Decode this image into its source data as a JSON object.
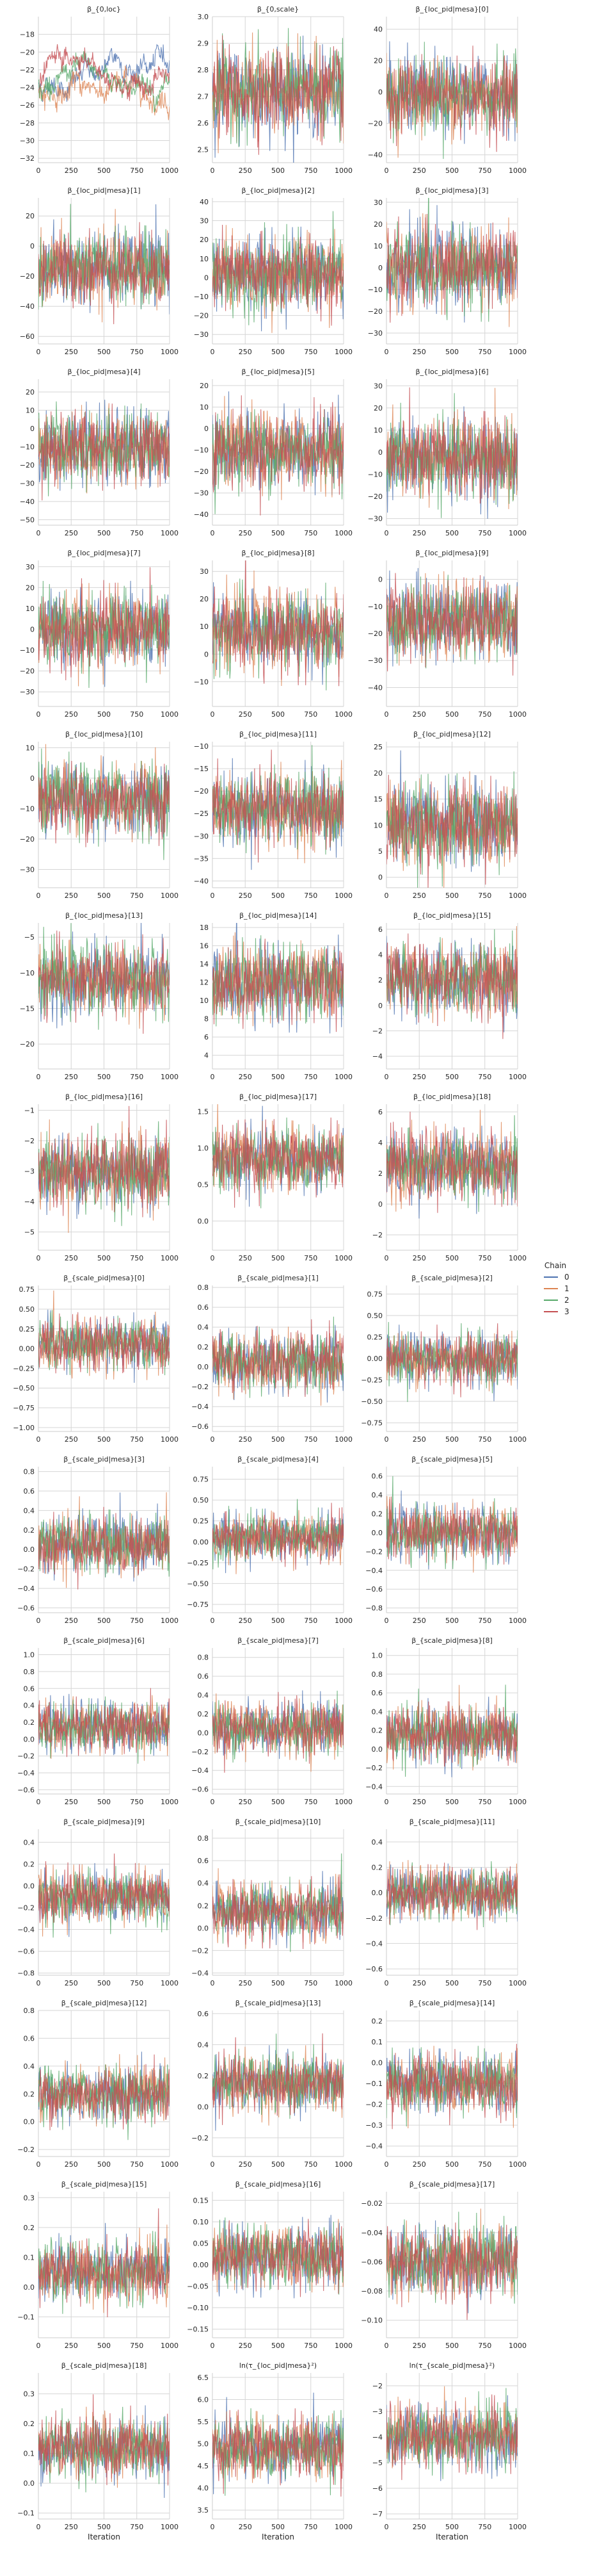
{
  "chart_data": {
    "type": "line",
    "layout": {
      "rows": 14,
      "cols": 3
    },
    "xlabel": "Iteration",
    "xlim": [
      0,
      1000
    ],
    "xticks": [
      0,
      250,
      500,
      750,
      1000
    ],
    "legend": {
      "title": "Chain",
      "placement": "right",
      "entries": [
        "0",
        "1",
        "2",
        "3"
      ]
    },
    "series_colors": [
      "#4c72b0",
      "#dd8452",
      "#55a868",
      "#c44e52"
    ],
    "panels": [
      {
        "title": "β_{0,loc}",
        "ylim": [
          -32.5,
          -16
        ],
        "yticks": [
          -32,
          -30,
          -28,
          -26,
          -24,
          -22,
          -20,
          -18
        ],
        "center": -24,
        "spread": 1.6,
        "style": "walk"
      },
      {
        "title": "β_{0,scale}",
        "ylim": [
          2.45,
          3.0
        ],
        "yticks": [
          2.5,
          2.6,
          2.7,
          2.8,
          2.9,
          3.0
        ],
        "center": 2.72,
        "spread": 0.08
      },
      {
        "title": "β_{loc_pid|mesa}[0]",
        "ylim": [
          -45,
          48
        ],
        "yticks": [
          -40,
          -20,
          0,
          20,
          40
        ],
        "center": -2,
        "spread": 12
      },
      {
        "title": "β_{loc_pid|mesa}[1]",
        "ylim": [
          -65,
          32
        ],
        "yticks": [
          -60,
          -40,
          -20,
          0,
          20
        ],
        "center": -15,
        "spread": 12
      },
      {
        "title": "β_{loc_pid|mesa}[2]",
        "ylim": [
          -35,
          42
        ],
        "yticks": [
          -30,
          -20,
          -10,
          0,
          10,
          20,
          30,
          40
        ],
        "center": 2,
        "spread": 10
      },
      {
        "title": "β_{loc_pid|mesa}[3]",
        "ylim": [
          -35,
          32
        ],
        "yticks": [
          -30,
          -20,
          -10,
          0,
          10,
          20,
          30
        ],
        "center": 0,
        "spread": 9
      },
      {
        "title": "β_{loc_pid|mesa}[4]",
        "ylim": [
          -53,
          27
        ],
        "yticks": [
          -50,
          -40,
          -30,
          -20,
          -10,
          0,
          10,
          20
        ],
        "center": -10,
        "spread": 10
      },
      {
        "title": "β_{loc_pid|mesa}[5]",
        "ylim": [
          -45,
          23
        ],
        "yticks": [
          -40,
          -30,
          -20,
          -10,
          0,
          10,
          20
        ],
        "center": -10,
        "spread": 9
      },
      {
        "title": "β_{loc_pid|mesa}[6]",
        "ylim": [
          -33,
          33
        ],
        "yticks": [
          -30,
          -20,
          -10,
          0,
          10,
          20,
          30
        ],
        "center": -3,
        "spread": 9
      },
      {
        "title": "β_{loc_pid|mesa}[7]",
        "ylim": [
          -37,
          33
        ],
        "yticks": [
          -30,
          -20,
          -10,
          0,
          10,
          20,
          30
        ],
        "center": 0,
        "spread": 9
      },
      {
        "title": "β_{loc_pid|mesa}[8]",
        "ylim": [
          -19,
          34
        ],
        "yticks": [
          -10,
          0,
          10,
          20,
          30
        ],
        "center": 8,
        "spread": 7
      },
      {
        "title": "β_{loc_pid|mesa}[9]",
        "ylim": [
          -47,
          7
        ],
        "yticks": [
          -40,
          -30,
          -20,
          -10,
          0
        ],
        "center": -15,
        "spread": 7
      },
      {
        "title": "β_{loc_pid|mesa}[10]",
        "ylim": [
          -36,
          12
        ],
        "yticks": [
          -30,
          -20,
          -10,
          0,
          10
        ],
        "center": -7,
        "spread": 6
      },
      {
        "title": "β_{loc_pid|mesa}[11]",
        "ylim": [
          -41.5,
          -9
        ],
        "yticks": [
          -40,
          -35,
          -30,
          -25,
          -20,
          -15,
          -10
        ],
        "center": -24,
        "spread": 4
      },
      {
        "title": "β_{loc_pid|mesa}[12]",
        "ylim": [
          -2,
          26
        ],
        "yticks": [
          0,
          5,
          10,
          15,
          20,
          25
        ],
        "center": 10,
        "spread": 4
      },
      {
        "title": "β_{loc_pid|mesa}[13]",
        "ylim": [
          -23.5,
          -3
        ],
        "yticks": [
          -20,
          -15,
          -10,
          -5
        ],
        "center": -11,
        "spread": 2.5
      },
      {
        "title": "β_{loc_pid|mesa}[14]",
        "ylim": [
          2.5,
          18.5
        ],
        "yticks": [
          4,
          6,
          8,
          10,
          12,
          14,
          16,
          18
        ],
        "center": 12,
        "spread": 2
      },
      {
        "title": "β_{loc_pid|mesa}[15]",
        "ylim": [
          -5,
          6.5
        ],
        "yticks": [
          -4,
          -2,
          0,
          2,
          4,
          6
        ],
        "center": 2,
        "spread": 1.4
      },
      {
        "title": "β_{loc_pid|mesa}[16]",
        "ylim": [
          -5.6,
          -0.8
        ],
        "yticks": [
          -5,
          -4,
          -3,
          -2,
          -1
        ],
        "center": -3,
        "spread": 0.6
      },
      {
        "title": "β_{loc_pid|mesa}[17]",
        "ylim": [
          -0.4,
          1.6
        ],
        "yticks": [
          0.0,
          0.5,
          1.0,
          1.5
        ],
        "center": 0.85,
        "spread": 0.22
      },
      {
        "title": "β_{loc_pid|mesa}[18]",
        "ylim": [
          -3,
          6.5
        ],
        "yticks": [
          -2,
          0,
          2,
          4,
          6
        ],
        "center": 2.5,
        "spread": 1.1
      },
      {
        "title": "β_{scale_pid|mesa}[0]",
        "ylim": [
          -1.05,
          0.8
        ],
        "yticks": [
          -1.0,
          -0.75,
          -0.5,
          -0.25,
          0.0,
          0.25,
          0.5,
          0.75
        ],
        "center": 0.05,
        "spread": 0.16
      },
      {
        "title": "β_{scale_pid|mesa}[1]",
        "ylim": [
          -0.65,
          0.82
        ],
        "yticks": [
          -0.6,
          -0.4,
          -0.2,
          0.0,
          0.2,
          0.4,
          0.6,
          0.8
        ],
        "center": 0.05,
        "spread": 0.15
      },
      {
        "title": "β_{scale_pid|mesa}[2]",
        "ylim": [
          -0.85,
          0.85
        ],
        "yticks": [
          -0.75,
          -0.5,
          -0.25,
          0.0,
          0.25,
          0.5,
          0.75
        ],
        "center": 0.0,
        "spread": 0.15
      },
      {
        "title": "β_{scale_pid|mesa}[3]",
        "ylim": [
          -0.65,
          0.85
        ],
        "yticks": [
          -0.6,
          -0.4,
          -0.2,
          0.0,
          0.2,
          0.4,
          0.6,
          0.8
        ],
        "center": 0.05,
        "spread": 0.15
      },
      {
        "title": "β_{scale_pid|mesa}[4]",
        "ylim": [
          -0.85,
          0.9
        ],
        "yticks": [
          -0.75,
          -0.5,
          -0.25,
          0.0,
          0.25,
          0.5,
          0.75
        ],
        "center": 0.05,
        "spread": 0.14
      },
      {
        "title": "β_{scale_pid|mesa}[5]",
        "ylim": [
          -0.85,
          0.7
        ],
        "yticks": [
          -0.8,
          -0.6,
          -0.4,
          -0.2,
          0.0,
          0.2,
          0.4,
          0.6
        ],
        "center": 0.0,
        "spread": 0.14
      },
      {
        "title": "β_{scale_pid|mesa}[6]",
        "ylim": [
          -0.65,
          1.08
        ],
        "yticks": [
          -0.6,
          -0.4,
          -0.2,
          0.0,
          0.2,
          0.4,
          0.6,
          0.8,
          1.0
        ],
        "center": 0.15,
        "spread": 0.15
      },
      {
        "title": "β_{scale_pid|mesa}[7]",
        "ylim": [
          -0.65,
          0.9
        ],
        "yticks": [
          -0.6,
          -0.4,
          -0.2,
          0.0,
          0.2,
          0.4,
          0.6,
          0.8
        ],
        "center": 0.05,
        "spread": 0.14
      },
      {
        "title": "β_{scale_pid|mesa}[8]",
        "ylim": [
          -0.48,
          1.08
        ],
        "yticks": [
          -0.4,
          -0.2,
          0.0,
          0.2,
          0.4,
          0.6,
          0.8,
          1.0
        ],
        "center": 0.15,
        "spread": 0.15
      },
      {
        "title": "β_{scale_pid|mesa}[9]",
        "ylim": [
          -0.82,
          0.52
        ],
        "yticks": [
          -0.8,
          -0.6,
          -0.4,
          -0.2,
          0.0,
          0.2,
          0.4
        ],
        "center": -0.1,
        "spread": 0.12
      },
      {
        "title": "β_{scale_pid|mesa}[10]",
        "ylim": [
          -0.42,
          0.88
        ],
        "yticks": [
          -0.4,
          -0.2,
          0.0,
          0.2,
          0.4,
          0.6,
          0.8
        ],
        "center": 0.15,
        "spread": 0.12
      },
      {
        "title": "β_{scale_pid|mesa}[11]",
        "ylim": [
          -0.65,
          0.5
        ],
        "yticks": [
          -0.6,
          -0.4,
          -0.2,
          0.0,
          0.2,
          0.4
        ],
        "center": 0.0,
        "spread": 0.1
      },
      {
        "title": "β_{scale_pid|mesa}[12]",
        "ylim": [
          -0.25,
          0.8
        ],
        "yticks": [
          -0.2,
          0.0,
          0.2,
          0.4,
          0.6,
          0.8
        ],
        "center": 0.2,
        "spread": 0.1
      },
      {
        "title": "β_{scale_pid|mesa}[13]",
        "ylim": [
          -0.32,
          0.62
        ],
        "yticks": [
          -0.2,
          0.0,
          0.2,
          0.4,
          0.6
        ],
        "center": 0.15,
        "spread": 0.09
      },
      {
        "title": "β_{scale_pid|mesa}[14]",
        "ylim": [
          -0.45,
          0.25
        ],
        "yticks": [
          -0.4,
          -0.3,
          -0.2,
          -0.1,
          0.0,
          0.1,
          0.2
        ],
        "center": -0.1,
        "spread": 0.07
      },
      {
        "title": "β_{scale_pid|mesa}[15]",
        "ylim": [
          -0.17,
          0.32
        ],
        "yticks": [
          -0.1,
          0.0,
          0.1,
          0.2,
          0.3
        ],
        "center": 0.05,
        "spread": 0.05
      },
      {
        "title": "β_{scale_pid|mesa}[16]",
        "ylim": [
          -0.17,
          0.17
        ],
        "yticks": [
          -0.15,
          -0.1,
          -0.05,
          0.0,
          0.05,
          0.1,
          0.15
        ],
        "center": 0.02,
        "spread": 0.035
      },
      {
        "title": "β_{scale_pid|mesa}[17]",
        "ylim": [
          -0.112,
          -0.012
        ],
        "yticks": [
          -0.1,
          -0.08,
          -0.06,
          -0.04,
          -0.02
        ],
        "center": -0.06,
        "spread": 0.012
      },
      {
        "title": "β_{scale_pid|mesa}[18]",
        "ylim": [
          -0.12,
          0.37
        ],
        "yticks": [
          -0.1,
          0.0,
          0.1,
          0.2,
          0.3
        ],
        "center": 0.12,
        "spread": 0.05
      },
      {
        "title": "ln(τ_{loc_pid|mesa}²)",
        "ylim": [
          3.3,
          6.6
        ],
        "yticks": [
          3.5,
          4.0,
          4.5,
          5.0,
          5.5,
          6.0,
          6.5
        ],
        "center": 4.9,
        "spread": 0.35
      },
      {
        "title": "ln(τ_{scale_pid|mesa}²)",
        "ylim": [
          -7.2,
          -1.5
        ],
        "yticks": [
          -7,
          -6,
          -5,
          -4,
          -3,
          -2
        ],
        "center": -4,
        "spread": 0.6
      }
    ]
  }
}
